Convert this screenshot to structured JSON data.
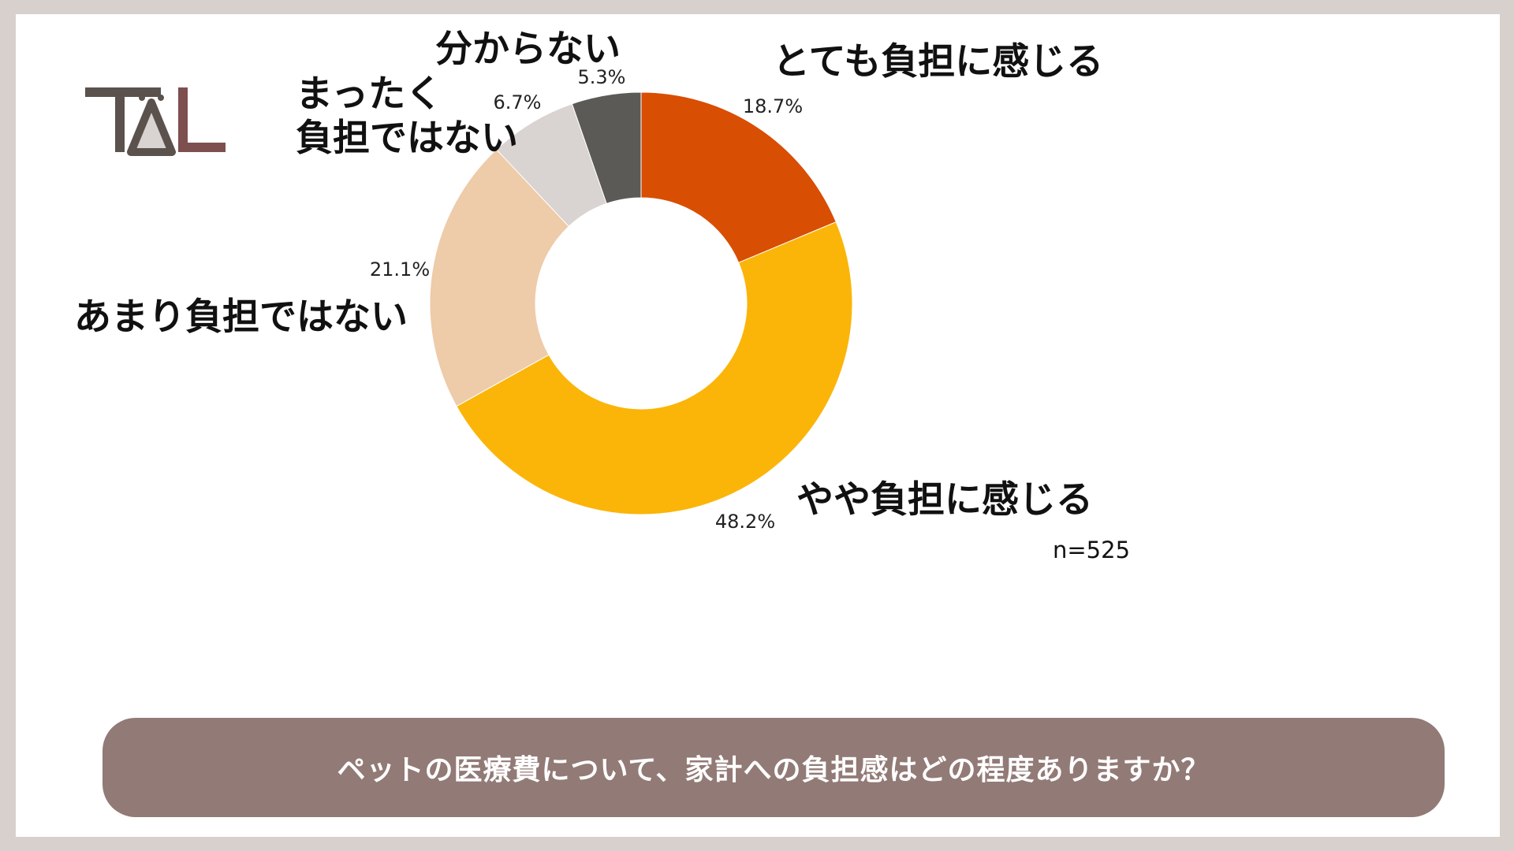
{
  "logo": {
    "text": "TAL",
    "colors": [
      "#5b524d",
      "#7d4f4f"
    ]
  },
  "question": "ペットの医療費について、家計への負担感はどの程度ありますか？",
  "sample_size": "n=525",
  "chart_data": {
    "type": "pie",
    "donut": true,
    "title": "",
    "categories": [
      "とても負担に感じる",
      "やや負担に感じる",
      "あまり負担ではない",
      "まったく負担ではない",
      "分からない"
    ],
    "category_label_lines": [
      [
        "とても負担に感じる"
      ],
      [
        "やや負担に感じる"
      ],
      [
        "あまり負担ではない"
      ],
      [
        "まったく",
        "負担ではない"
      ],
      [
        "分からない"
      ]
    ],
    "values": [
      18.7,
      48.2,
      21.1,
      6.7,
      5.3
    ],
    "value_labels": [
      "18.7%",
      "48.2%",
      "21.1%",
      "6.7%",
      "5.3%"
    ],
    "colors": [
      "#d84e03",
      "#fbb508",
      "#eecba9",
      "#d9d3d1",
      "#5b5a56"
    ],
    "legend": "none"
  }
}
